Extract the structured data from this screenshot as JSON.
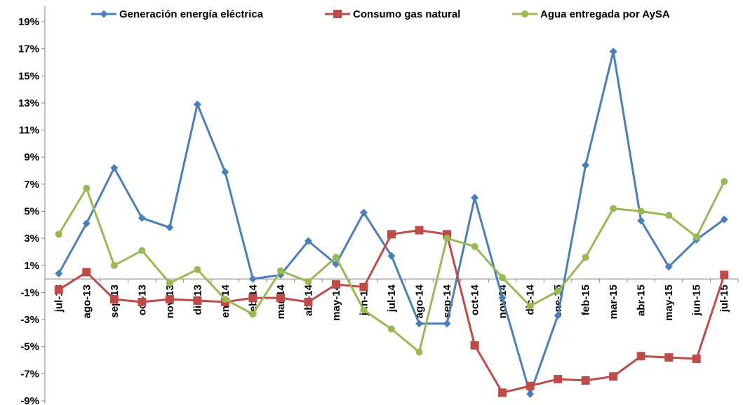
{
  "chart_data": {
    "type": "line",
    "categories": [
      "jul-13",
      "ago-13",
      "sep-13",
      "oct-13",
      "nov-13",
      "dic-13",
      "ene-14",
      "feb-14",
      "mar-14",
      "abr-14",
      "may-14",
      "jun-14",
      "jul-14",
      "ago-14",
      "sep-14",
      "oct-14",
      "nov-14",
      "dic-14",
      "ene-15",
      "feb-15",
      "mar-15",
      "abr-15",
      "may-15",
      "jun-15",
      "jul-15"
    ],
    "series": [
      {
        "name": "Generación energía eléctrica",
        "color": "#4A7EBB",
        "marker": "diamond",
        "values": [
          0.4,
          4.1,
          8.2,
          4.5,
          3.8,
          12.9,
          7.9,
          0.0,
          0.3,
          2.8,
          1.1,
          4.9,
          1.7,
          -3.3,
          -3.3,
          6.0,
          -1.4,
          -8.5,
          -2.7,
          8.4,
          16.8,
          4.3,
          0.9,
          2.9,
          4.4
        ]
      },
      {
        "name": "Consumo gas natural",
        "color": "#BE4B48",
        "marker": "square",
        "values": [
          -0.8,
          0.5,
          -1.5,
          -1.7,
          -1.5,
          -1.6,
          -1.7,
          -1.4,
          -1.4,
          -1.7,
          -0.4,
          -0.6,
          3.3,
          3.6,
          3.3,
          -4.9,
          -8.4,
          -7.9,
          -7.4,
          -7.5,
          -7.2,
          -5.7,
          -5.8,
          -5.9,
          0.3
        ]
      },
      {
        "name": "Agua entregada por AySA",
        "color": "#98B954",
        "marker": "circle",
        "values": [
          3.3,
          6.7,
          1.0,
          2.1,
          -0.3,
          0.7,
          -1.5,
          -2.6,
          0.6,
          -0.2,
          1.6,
          -2.3,
          -3.7,
          -5.4,
          3.0,
          2.4,
          0.1,
          -2.0,
          -0.9,
          1.6,
          5.2,
          5.0,
          4.7,
          3.1,
          7.2
        ]
      }
    ],
    "ylim": [
      -9,
      20
    ],
    "yticks": [
      "19%",
      "17%",
      "15%",
      "13%",
      "11%",
      "9%",
      "7%",
      "5%",
      "3%",
      "1%",
      "-1%",
      "-3%",
      "-5%",
      "-7%",
      "-9%"
    ],
    "ytick_values": [
      19,
      17,
      15,
      13,
      11,
      9,
      7,
      5,
      3,
      1,
      -1,
      -3,
      -5,
      -7,
      -9
    ],
    "grid": false,
    "legend_position": "top"
  }
}
